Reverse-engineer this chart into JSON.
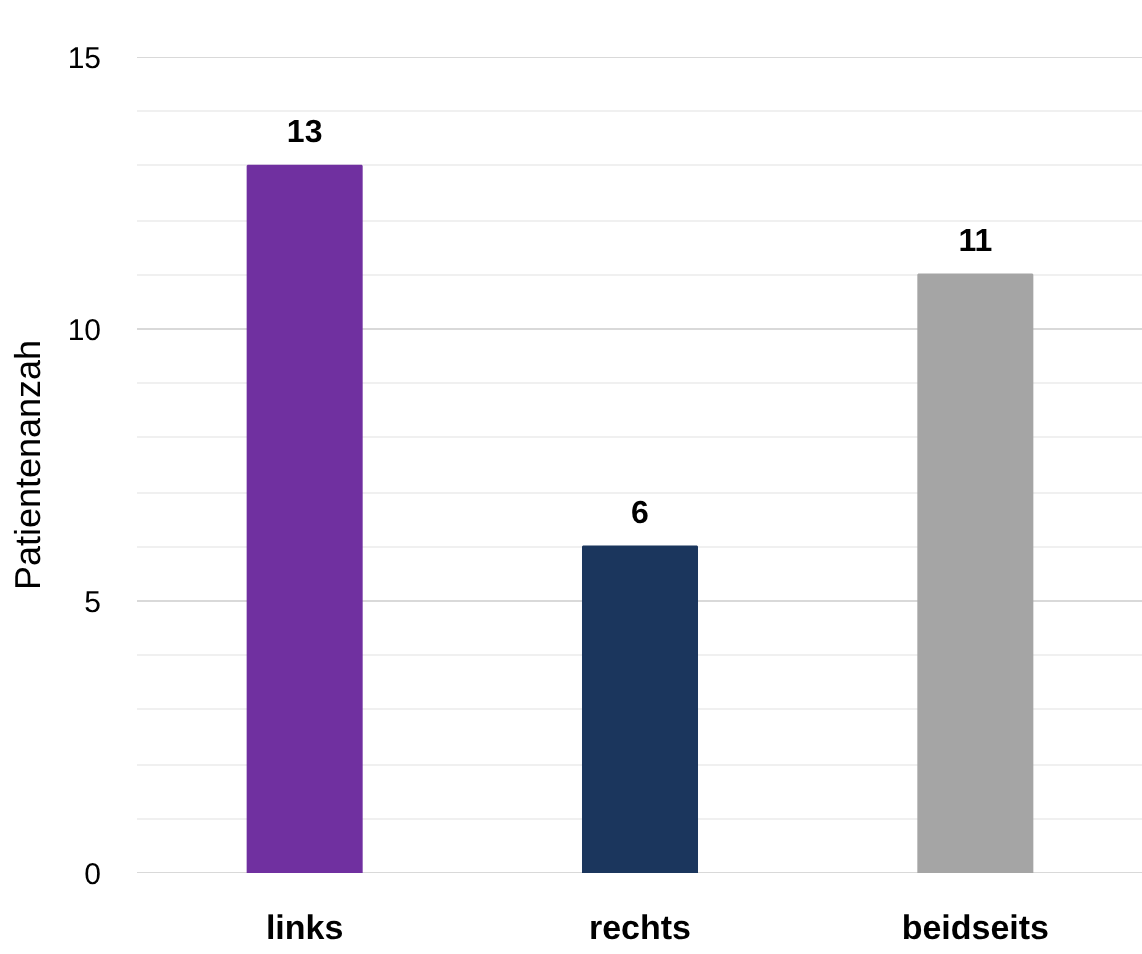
{
  "chart_data": {
    "type": "bar",
    "ylabel": "Patientenanzah",
    "categories": [
      "links",
      "rechts",
      "beidseits"
    ],
    "values": [
      13,
      6,
      11
    ],
    "colors": [
      "#7030a0",
      "#1b365d",
      "#a5a5a5"
    ],
    "ylim": [
      0,
      15
    ],
    "yticks": [
      0,
      5,
      10,
      15
    ],
    "grid": "y",
    "data_labels": true
  }
}
